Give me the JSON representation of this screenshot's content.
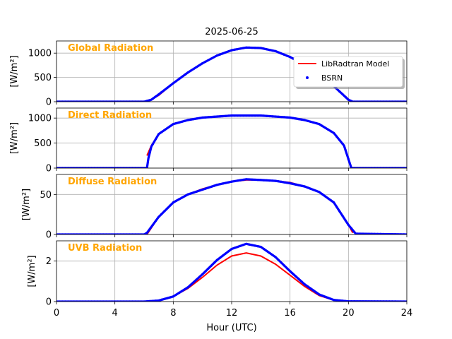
{
  "chart_data": {
    "type": "line",
    "title": "2025-06-25",
    "xlabel": "Hour (UTC)",
    "xlim": [
      0,
      24
    ],
    "xticks": [
      0,
      4,
      8,
      12,
      16,
      20,
      24
    ],
    "grid": true,
    "legend": {
      "placement": "upper-right of top panel",
      "entries": [
        {
          "label": "LibRadtran Model",
          "color": "#ff0000",
          "style": "line"
        },
        {
          "label": "BSRN",
          "color": "#0000ff",
          "style": "dots"
        }
      ]
    },
    "panel_label_color": "#ffa500",
    "panels": [
      {
        "label": "Global Radiation",
        "ylabel": "[W/m²]",
        "ylim": [
          0,
          1250
        ],
        "yticks": [
          0,
          500,
          1000
        ],
        "series": [
          {
            "name": "LibRadtran Model",
            "x": [
              6.2,
              7,
              8,
              9,
              10,
              11,
              12,
              13,
              14,
              15,
              16,
              17,
              18,
              19,
              20.2
            ],
            "values": [
              0,
              130,
              380,
              600,
              790,
              950,
              1060,
              1110,
              1100,
              1040,
              920,
              760,
              560,
              320,
              0
            ]
          },
          {
            "name": "BSRN",
            "x": [
              0,
              6,
              6.5,
              7,
              8,
              9,
              10,
              11,
              12,
              13,
              14,
              15,
              16,
              17,
              18,
              19,
              20,
              20.3,
              24
            ],
            "values": [
              0,
              0,
              40,
              150,
              380,
              600,
              790,
              950,
              1060,
              1115,
              1105,
              1040,
              920,
              760,
              560,
              320,
              40,
              0,
              0
            ]
          }
        ]
      },
      {
        "label": "Direct Radiation",
        "ylabel": "[W/m²]",
        "ylim": [
          0,
          1200
        ],
        "yticks": [
          0,
          500,
          1000
        ],
        "series": [
          {
            "name": "LibRadtran Model",
            "x": [
              6.2,
              6.5,
              7,
              8,
              9,
              10,
              12,
              14,
              16,
              17,
              18,
              19,
              19.7,
              20.2
            ],
            "values": [
              250,
              450,
              680,
              880,
              960,
              1010,
              1050,
              1050,
              1010,
              960,
              880,
              700,
              450,
              0
            ]
          },
          {
            "name": "BSRN",
            "x": [
              0,
              6.2,
              6.3,
              6.5,
              7,
              8,
              9,
              10,
              12,
              14,
              16,
              17,
              18,
              19,
              19.7,
              20.2,
              24
            ],
            "values": [
              0,
              0,
              200,
              430,
              680,
              880,
              960,
              1010,
              1050,
              1050,
              1010,
              960,
              880,
              700,
              450,
              0,
              0
            ]
          }
        ]
      },
      {
        "label": "Diffuse Radiation",
        "ylabel": "[W/m²]",
        "ylim": [
          0,
          75
        ],
        "yticks": [
          0,
          50
        ],
        "series": [
          {
            "name": "LibRadtran Model",
            "x": [
              6.2,
              7,
              8,
              9,
              10,
              11,
              12,
              13,
              14,
              15,
              16,
              17,
              18,
              19,
              20,
              20.3
            ],
            "values": [
              0,
              22,
              40,
              50,
              57,
              62,
              66,
              68,
              68,
              67,
              65,
              60,
              53,
              40,
              12,
              2
            ]
          },
          {
            "name": "BSRN",
            "x": [
              0,
              6,
              6.2,
              7,
              8,
              9,
              10,
              11,
              12,
              13,
              14,
              15,
              16,
              17,
              18,
              19,
              20,
              20.5,
              24
            ],
            "values": [
              0,
              0,
              2,
              22,
              40,
              50,
              56,
              62,
              66,
              69,
              68,
              67,
              64,
              60,
              53,
              40,
              12,
              1,
              0
            ]
          }
        ]
      },
      {
        "label": "UVB Radiation",
        "ylabel": "[W/m²]",
        "ylim": [
          0,
          3
        ],
        "yticks": [
          0,
          2
        ],
        "series": [
          {
            "name": "LibRadtran Model",
            "x": [
              0,
              6,
              7,
              8,
              9,
              10,
              11,
              12,
              13,
              14,
              15,
              16,
              17,
              18,
              19,
              20,
              24
            ],
            "values": [
              0,
              0,
              0.05,
              0.25,
              0.65,
              1.2,
              1.8,
              2.25,
              2.4,
              2.25,
              1.85,
              1.3,
              0.75,
              0.3,
              0.07,
              0.01,
              0
            ]
          },
          {
            "name": "BSRN",
            "x": [
              0,
              6,
              7,
              8,
              9,
              10,
              11,
              12,
              13,
              14,
              15,
              16,
              17,
              18,
              19,
              20,
              24
            ],
            "values": [
              0,
              0,
              0.05,
              0.25,
              0.7,
              1.35,
              2.05,
              2.6,
              2.85,
              2.7,
              2.2,
              1.5,
              0.85,
              0.35,
              0.08,
              0.01,
              0
            ]
          }
        ]
      }
    ]
  }
}
